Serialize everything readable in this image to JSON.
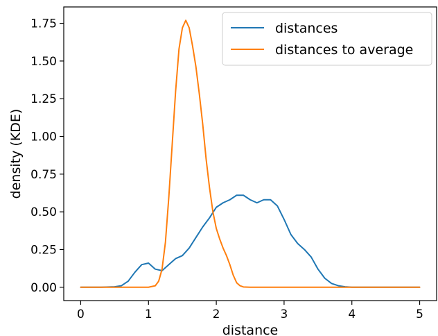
{
  "chart_data": {
    "type": "line",
    "xlabel": "distance",
    "ylabel": "density (KDE)",
    "xlim": [
      -0.25,
      5.25
    ],
    "ylim": [
      -0.0885,
      1.8585
    ],
    "x_ticks": [
      "0",
      "1",
      "2",
      "3",
      "4",
      "5"
    ],
    "x_tick_values": [
      0,
      1,
      2,
      3,
      4,
      5
    ],
    "y_ticks": [
      "0.00",
      "0.25",
      "0.50",
      "0.75",
      "1.00",
      "1.25",
      "1.50",
      "1.75"
    ],
    "y_tick_values": [
      0,
      0.25,
      0.5,
      0.75,
      1.0,
      1.25,
      1.5,
      1.75
    ],
    "grid": false,
    "legend_position": "top-right",
    "series": [
      {
        "name": "distances",
        "color": "#1f77b4",
        "x": [
          0,
          0.3,
          0.5,
          0.6,
          0.7,
          0.8,
          0.9,
          1.0,
          1.1,
          1.2,
          1.3,
          1.4,
          1.5,
          1.6,
          1.7,
          1.8,
          1.9,
          2.0,
          2.1,
          2.2,
          2.3,
          2.4,
          2.5,
          2.6,
          2.7,
          2.8,
          2.9,
          3.0,
          3.1,
          3.2,
          3.3,
          3.4,
          3.5,
          3.6,
          3.7,
          3.8,
          3.9,
          4.0,
          4.5,
          5.0
        ],
        "y": [
          0,
          0,
          0.003,
          0.01,
          0.04,
          0.1,
          0.15,
          0.16,
          0.12,
          0.11,
          0.15,
          0.19,
          0.21,
          0.26,
          0.33,
          0.4,
          0.46,
          0.53,
          0.56,
          0.58,
          0.61,
          0.61,
          0.58,
          0.56,
          0.58,
          0.58,
          0.54,
          0.45,
          0.35,
          0.29,
          0.25,
          0.2,
          0.12,
          0.06,
          0.025,
          0.01,
          0.003,
          0,
          0,
          0
        ]
      },
      {
        "name": "distances to average",
        "color": "#ff7f0e",
        "x": [
          0,
          1.0,
          1.1,
          1.15,
          1.2,
          1.25,
          1.3,
          1.35,
          1.4,
          1.45,
          1.5,
          1.55,
          1.6,
          1.65,
          1.7,
          1.75,
          1.8,
          1.85,
          1.9,
          1.95,
          2.0,
          2.05,
          2.1,
          2.15,
          2.2,
          2.25,
          2.3,
          2.35,
          2.4,
          2.5,
          3.0,
          5.0
        ],
        "y": [
          0,
          0,
          0.01,
          0.04,
          0.12,
          0.3,
          0.6,
          0.95,
          1.3,
          1.58,
          1.72,
          1.77,
          1.72,
          1.6,
          1.46,
          1.28,
          1.08,
          0.85,
          0.66,
          0.5,
          0.39,
          0.32,
          0.26,
          0.21,
          0.15,
          0.08,
          0.03,
          0.01,
          0.002,
          0,
          0,
          0
        ]
      }
    ]
  }
}
